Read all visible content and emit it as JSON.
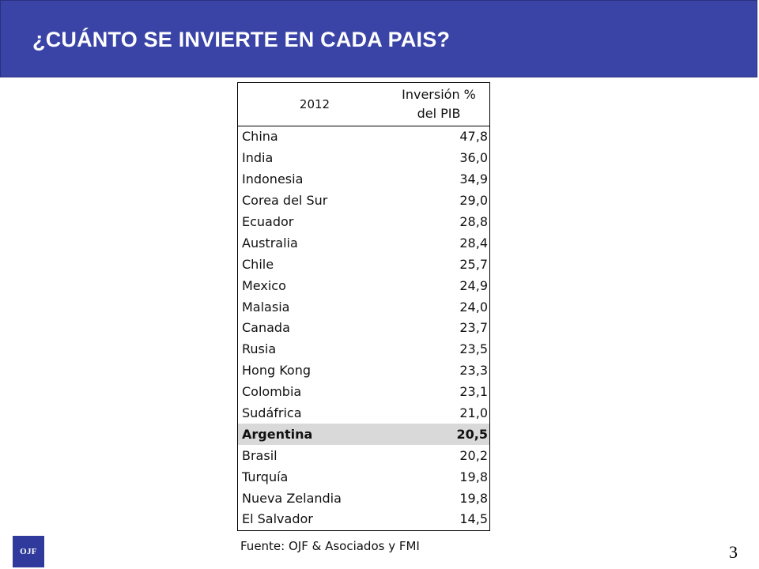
{
  "slide": {
    "title": "¿CUÁNTO SE INVIERTE EN CADA PAIS?",
    "source": "Fuente: OJF & Asociados y FMI",
    "page_number": "3",
    "logo_text": "OJF",
    "colors": {
      "header_band": "#3a44a6",
      "highlight_row": "#d9d9d9",
      "logo_bg": "#2f3a9c"
    }
  },
  "table": {
    "header_year": "2012",
    "header_value_line1": "Inversión %",
    "header_value_line2": "del PIB",
    "highlighted_country": "Argentina",
    "rows": [
      {
        "country": "China",
        "value": "47,8"
      },
      {
        "country": "India",
        "value": "36,0"
      },
      {
        "country": "Indonesia",
        "value": "34,9"
      },
      {
        "country": "Corea del Sur",
        "value": "29,0"
      },
      {
        "country": "Ecuador",
        "value": "28,8"
      },
      {
        "country": "Australia",
        "value": "28,4"
      },
      {
        "country": "Chile",
        "value": "25,7"
      },
      {
        "country": "Mexico",
        "value": "24,9"
      },
      {
        "country": "Malasia",
        "value": "24,0"
      },
      {
        "country": "Canada",
        "value": "23,7"
      },
      {
        "country": "Rusia",
        "value": "23,5"
      },
      {
        "country": "Hong Kong",
        "value": "23,3"
      },
      {
        "country": "Colombia",
        "value": "23,1"
      },
      {
        "country": "Sudáfrica",
        "value": "21,0"
      },
      {
        "country": "Argentina",
        "value": "20,5"
      },
      {
        "country": "Brasil",
        "value": "20,2"
      },
      {
        "country": "Turquía",
        "value": "19,8"
      },
      {
        "country": "Nueva Zelandia",
        "value": "19,8"
      },
      {
        "country": "El Salvador",
        "value": "14,5"
      }
    ]
  }
}
